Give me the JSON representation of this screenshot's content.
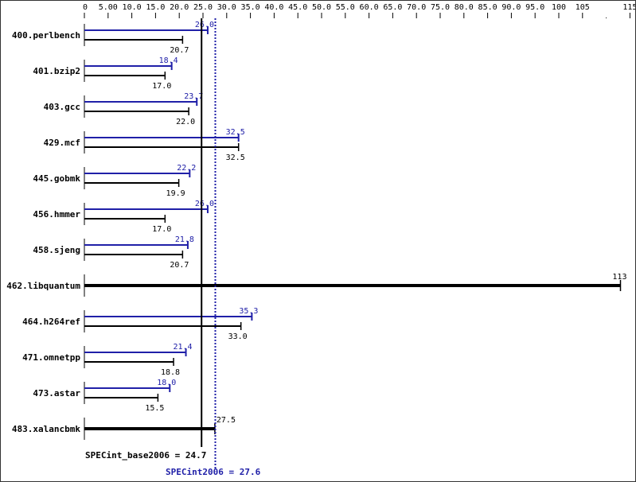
{
  "chart_data": {
    "type": "bar",
    "orientation": "horizontal",
    "xlim": [
      0,
      115
    ],
    "ticks": [
      {
        "v": 0,
        "label": "0"
      },
      {
        "v": 5,
        "label": "5.00"
      },
      {
        "v": 10,
        "label": "10.0"
      },
      {
        "v": 15,
        "label": "15.0"
      },
      {
        "v": 20,
        "label": "20.0"
      },
      {
        "v": 25,
        "label": "25.0"
      },
      {
        "v": 30,
        "label": "30.0"
      },
      {
        "v": 35,
        "label": "35.0"
      },
      {
        "v": 40,
        "label": "40.0"
      },
      {
        "v": 45,
        "label": "45.0"
      },
      {
        "v": 50,
        "label": "50.0"
      },
      {
        "v": 55,
        "label": "55.0"
      },
      {
        "v": 60,
        "label": "60.0"
      },
      {
        "v": 65,
        "label": "65.0"
      },
      {
        "v": 70,
        "label": "70.0"
      },
      {
        "v": 75,
        "label": "75.0"
      },
      {
        "v": 80,
        "label": "80.0"
      },
      {
        "v": 85,
        "label": "85.0"
      },
      {
        "v": 90,
        "label": "90.0"
      },
      {
        "v": 95,
        "label": "95.0"
      },
      {
        "v": 100,
        "label": "100"
      },
      {
        "v": 105,
        "label": "105"
      },
      {
        "v": 110,
        "label": ""
      },
      {
        "v": 115,
        "label": "115"
      }
    ],
    "categories": [
      "400.perlbench",
      "401.bzip2",
      "403.gcc",
      "429.mcf",
      "445.gobmk",
      "456.hmmer",
      "458.sjeng",
      "462.libquantum",
      "464.h264ref",
      "471.omnetpp",
      "473.astar",
      "483.xalancbmk"
    ],
    "series": [
      {
        "name": "SPECint2006",
        "color": "#2020a8",
        "values": [
          26.0,
          18.4,
          23.7,
          32.5,
          22.2,
          26.0,
          21.8,
          113,
          35.3,
          21.4,
          18.0,
          27.5
        ],
        "labels": [
          "26.0",
          "18.4",
          "23.7",
          "32.5",
          "22.2",
          "26.0",
          "21.8",
          "113",
          "35.3",
          "21.4",
          "18.0",
          "27.5"
        ]
      },
      {
        "name": "SPECint_base2006",
        "color": "#000000",
        "values": [
          20.7,
          17.0,
          22.0,
          32.5,
          19.9,
          17.0,
          20.7,
          113,
          33.0,
          18.8,
          15.5,
          27.5
        ],
        "labels": [
          "20.7",
          "17.0",
          "22.0",
          "32.5",
          "19.9",
          "17.0",
          "20.7",
          "113",
          "33.0",
          "18.8",
          "15.5",
          "27.5"
        ]
      }
    ],
    "combined_rows": [
      7,
      11
    ],
    "summary": {
      "base_label": "SPECint_base2006 = 24.7",
      "base_value": 24.7,
      "peak_label": "SPECint2006 = 27.6",
      "peak_value": 27.6
    }
  }
}
